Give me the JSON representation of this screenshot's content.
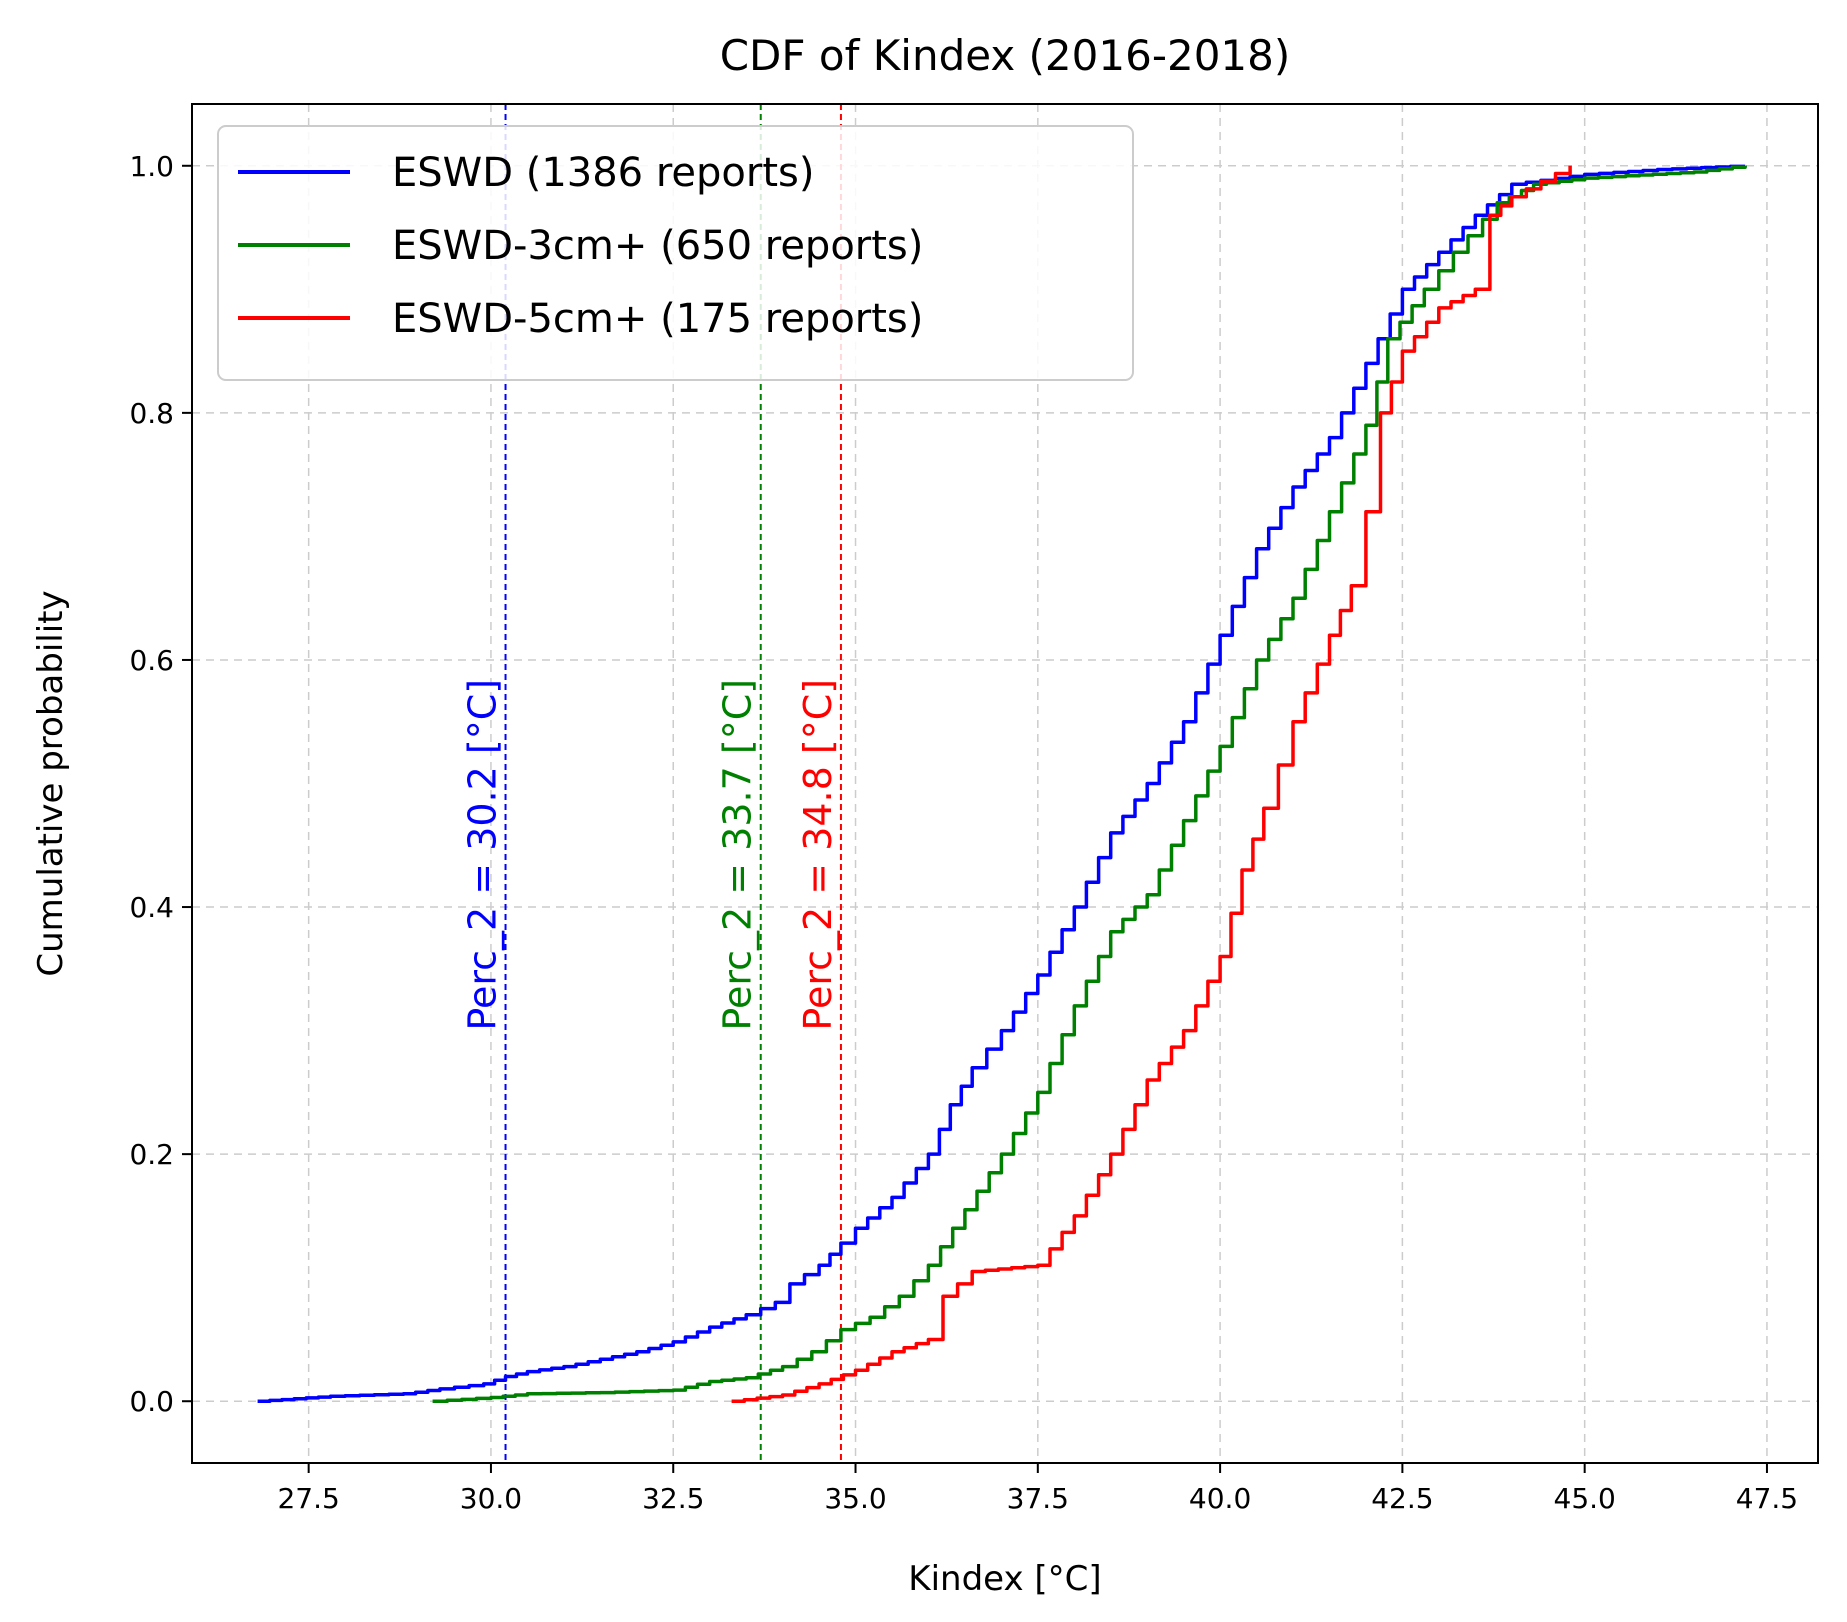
{
  "chart_data": {
    "type": "line",
    "title": "CDF of Kindex (2016-2018)",
    "xlabel": "Kindex [°C]",
    "ylabel": "Cumulative probability",
    "xlim": [
      25.9,
      48.2
    ],
    "ylim": [
      -0.05,
      1.05
    ],
    "x_ticks": [
      27.5,
      30.0,
      32.5,
      35.0,
      37.5,
      40.0,
      42.5,
      45.0,
      47.5
    ],
    "x_tick_labels": [
      "27.5",
      "30.0",
      "32.5",
      "35.0",
      "37.5",
      "40.0",
      "42.5",
      "45.0",
      "47.5"
    ],
    "y_ticks": [
      0.0,
      0.2,
      0.4,
      0.6,
      0.8,
      1.0
    ],
    "y_tick_labels": [
      "0.0",
      "0.2",
      "0.4",
      "0.6",
      "0.8",
      "1.0"
    ],
    "grid": true,
    "legend_position": "top-left",
    "series": [
      {
        "name": "ESWD (1386 reports)",
        "color": "#0000ff",
        "points": [
          [
            26.8,
            0.0
          ],
          [
            27.3,
            0.002
          ],
          [
            27.8,
            0.004
          ],
          [
            28.8,
            0.006
          ],
          [
            29.3,
            0.01
          ],
          [
            29.9,
            0.014
          ],
          [
            30.2,
            0.02
          ],
          [
            30.5,
            0.024
          ],
          [
            31.0,
            0.028
          ],
          [
            31.5,
            0.034
          ],
          [
            32.0,
            0.04
          ],
          [
            32.5,
            0.048
          ],
          [
            33.0,
            0.06
          ],
          [
            33.5,
            0.07
          ],
          [
            33.9,
            0.08
          ],
          [
            34.1,
            0.095
          ],
          [
            34.5,
            0.11
          ],
          [
            34.8,
            0.128
          ],
          [
            35.0,
            0.14
          ],
          [
            35.5,
            0.165
          ],
          [
            36.0,
            0.2
          ],
          [
            36.3,
            0.24
          ],
          [
            36.6,
            0.27
          ],
          [
            37.0,
            0.3
          ],
          [
            37.5,
            0.345
          ],
          [
            38.0,
            0.4
          ],
          [
            38.5,
            0.46
          ],
          [
            39.0,
            0.5
          ],
          [
            39.5,
            0.55
          ],
          [
            40.0,
            0.62
          ],
          [
            40.5,
            0.69
          ],
          [
            41.0,
            0.74
          ],
          [
            41.5,
            0.78
          ],
          [
            42.0,
            0.84
          ],
          [
            42.5,
            0.9
          ],
          [
            43.0,
            0.93
          ],
          [
            43.5,
            0.96
          ],
          [
            44.0,
            0.985
          ],
          [
            45.0,
            0.993
          ],
          [
            46.0,
            0.997
          ],
          [
            47.2,
            1.0
          ]
        ]
      },
      {
        "name": "ESWD-3cm+ (650 reports)",
        "color": "#008000",
        "points": [
          [
            29.2,
            0.0
          ],
          [
            30.0,
            0.003
          ],
          [
            30.5,
            0.006
          ],
          [
            31.5,
            0.007
          ],
          [
            32.5,
            0.009
          ],
          [
            33.0,
            0.016
          ],
          [
            33.5,
            0.019
          ],
          [
            34.0,
            0.028
          ],
          [
            34.4,
            0.04
          ],
          [
            34.8,
            0.058
          ],
          [
            35.2,
            0.068
          ],
          [
            35.6,
            0.085
          ],
          [
            36.0,
            0.11
          ],
          [
            36.5,
            0.155
          ],
          [
            37.0,
            0.2
          ],
          [
            37.5,
            0.25
          ],
          [
            38.0,
            0.32
          ],
          [
            38.5,
            0.38
          ],
          [
            39.0,
            0.41
          ],
          [
            39.5,
            0.47
          ],
          [
            40.0,
            0.53
          ],
          [
            40.5,
            0.6
          ],
          [
            41.0,
            0.65
          ],
          [
            41.5,
            0.72
          ],
          [
            42.0,
            0.79
          ],
          [
            42.3,
            0.86
          ],
          [
            42.8,
            0.9
          ],
          [
            43.2,
            0.93
          ],
          [
            43.8,
            0.97
          ],
          [
            44.3,
            0.985
          ],
          [
            45.0,
            0.99
          ],
          [
            46.5,
            0.995
          ],
          [
            47.2,
            1.0
          ]
        ]
      },
      {
        "name": "ESWD-5cm+ (175 reports)",
        "color": "#ff0000",
        "points": [
          [
            33.3,
            0.0
          ],
          [
            34.0,
            0.005
          ],
          [
            34.5,
            0.014
          ],
          [
            35.0,
            0.025
          ],
          [
            35.5,
            0.04
          ],
          [
            36.0,
            0.05
          ],
          [
            36.2,
            0.085
          ],
          [
            36.6,
            0.105
          ],
          [
            37.5,
            0.11
          ],
          [
            38.0,
            0.15
          ],
          [
            38.5,
            0.2
          ],
          [
            39.0,
            0.26
          ],
          [
            39.5,
            0.3
          ],
          [
            40.0,
            0.36
          ],
          [
            40.3,
            0.43
          ],
          [
            40.6,
            0.48
          ],
          [
            41.0,
            0.55
          ],
          [
            41.5,
            0.62
          ],
          [
            41.8,
            0.66
          ],
          [
            42.0,
            0.72
          ],
          [
            42.2,
            0.8
          ],
          [
            42.5,
            0.85
          ],
          [
            43.0,
            0.885
          ],
          [
            43.5,
            0.9
          ],
          [
            43.7,
            0.96
          ],
          [
            44.0,
            0.975
          ],
          [
            44.8,
            1.0
          ]
        ]
      }
    ],
    "vlines": [
      {
        "x": 30.2,
        "color": "#0000ff",
        "label": "Perc_2 = 30.2 [°C]"
      },
      {
        "x": 33.7,
        "color": "#008000",
        "label": "Perc_2 = 33.7 [°C]"
      },
      {
        "x": 34.8,
        "color": "#ff0000",
        "label": "Perc_2 = 34.8 [°C]"
      }
    ]
  }
}
